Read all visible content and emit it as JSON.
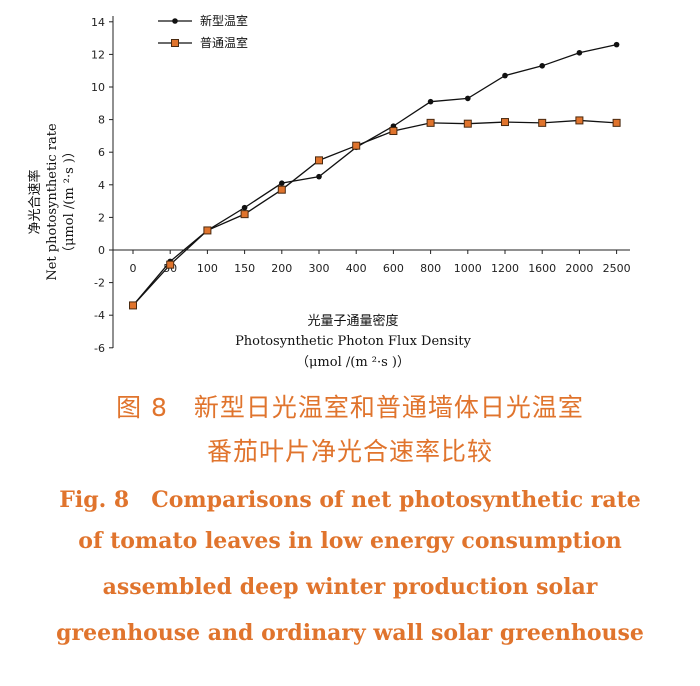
{
  "chart_data": {
    "type": "line",
    "categories": [
      "0",
      "50",
      "100",
      "150",
      "200",
      "300",
      "400",
      "600",
      "800",
      "1000",
      "1200",
      "1600",
      "2000",
      "2500"
    ],
    "series": [
      {
        "name": "新型温室",
        "marker": "filled-circle",
        "color": "#111111",
        "values": [
          -3.4,
          -0.7,
          1.2,
          2.6,
          4.1,
          4.5,
          6.3,
          7.6,
          9.1,
          9.3,
          10.7,
          11.3,
          12.1,
          12.6
        ]
      },
      {
        "name": "普通温室",
        "marker": "orange-square",
        "color": "#e0742d",
        "values": [
          -3.4,
          -0.9,
          1.2,
          2.2,
          3.7,
          5.5,
          6.4,
          7.3,
          7.8,
          7.75,
          7.85,
          7.8,
          7.95,
          7.8
        ]
      }
    ],
    "ylim": [
      -6,
      14
    ],
    "yticks": [
      "-6",
      "-4",
      "-2",
      "0",
      "2",
      "4",
      "6",
      "8",
      "10",
      "12",
      "14"
    ],
    "ylabel": {
      "cn": "净光合速率",
      "en": "Net photosynthetic rate",
      "unit": "（μmol /(m ²·s )）"
    },
    "xlabel": {
      "cn": "光量子通量密度",
      "en": "Photosynthetic Photon Flux Density",
      "unit": "（μmol /(m ²·s )）"
    },
    "legend_position": "top-left",
    "grid": false
  },
  "caption": {
    "cn_line1": "图 8　新型日光温室和普通墙体日光温室",
    "cn_line2": "番茄叶片净光合速率比较",
    "en_line1": "Fig. 8　Comparisons of net photosynthetic rate",
    "en_line2": "of tomato leaves in low energy consumption",
    "en_line3": "assembled deep winter production solar",
    "en_line4": "greenhouse and ordinary wall solar greenhouse"
  }
}
